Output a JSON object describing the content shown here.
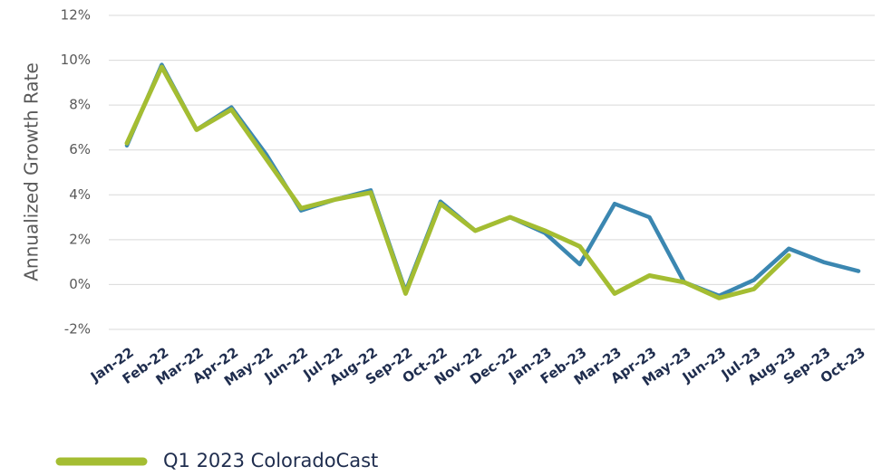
{
  "chart_data": {
    "type": "line",
    "y_label": "Annualized Growth Rate",
    "categories": [
      "Jan-22",
      "Feb-22",
      "Mar-22",
      "Apr-22",
      "May-22",
      "Jun-22",
      "Jul-22",
      "Aug-22",
      "Sep-22",
      "Oct-22",
      "Nov-22",
      "Dec-22",
      "Jan-23",
      "Feb-23",
      "Mar-23",
      "Apr-23",
      "May-23",
      "Jun-23",
      "Jul-23",
      "Aug-23",
      "Sep-23",
      "Oct-23"
    ],
    "series": [
      {
        "color": "#3b87b1",
        "values": [
          6.2,
          9.8,
          6.9,
          7.9,
          5.8,
          3.3,
          3.8,
          4.2,
          -0.3,
          3.7,
          2.4,
          3.0,
          2.3,
          0.9,
          3.6,
          3.0,
          0.1,
          -0.5,
          0.2,
          1.6,
          1.0,
          0.6
        ]
      },
      {
        "name": "Q1 2023 ColoradoCast",
        "color": "#a4bd32",
        "values": [
          6.3,
          9.7,
          6.9,
          7.8,
          5.6,
          3.4,
          3.8,
          4.1,
          -0.4,
          3.6,
          2.4,
          3.0,
          2.4,
          1.7,
          -0.4,
          0.4,
          0.1,
          -0.6,
          -0.2,
          1.3,
          null,
          null
        ]
      }
    ],
    "ylim": [
      -2,
      12
    ],
    "yticks": [
      {
        "value": -2,
        "label": "-2%"
      },
      {
        "value": 0,
        "label": "0%"
      },
      {
        "value": 2,
        "label": "2%"
      },
      {
        "value": 4,
        "label": "4%"
      },
      {
        "value": 6,
        "label": "6%"
      },
      {
        "value": 8,
        "label": "8%"
      },
      {
        "value": 10,
        "label": "10%"
      },
      {
        "value": 12,
        "label": "12%"
      }
    ],
    "grid": true,
    "legend": "bottom-left"
  }
}
